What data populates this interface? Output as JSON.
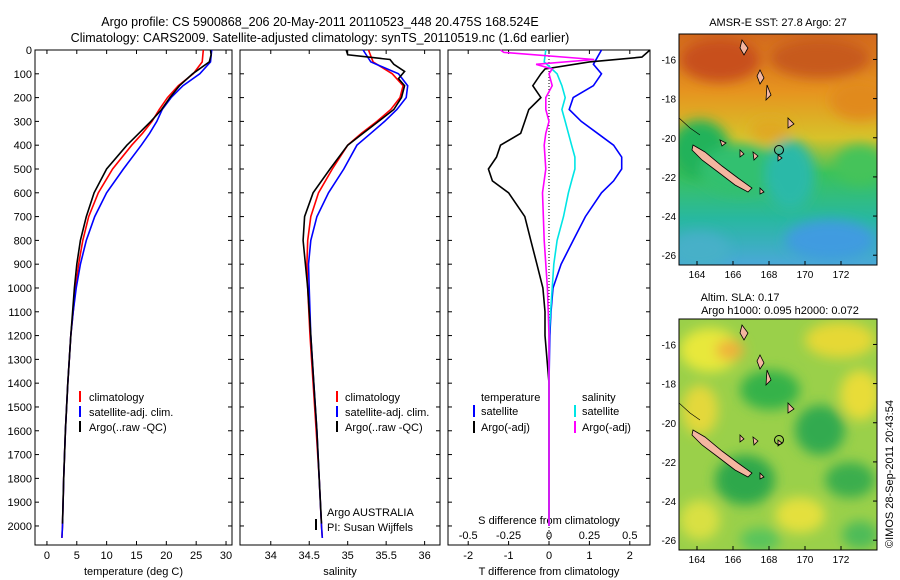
{
  "title": {
    "line1": "Argo profile: CS 5900868_206 20-May-2011 20110523_448 20.475S 168.524E",
    "line2": "Climatology: CARS2009. Satellite-adjusted climatology: synTS_20110519.nc (1.6d earlier)"
  },
  "colors": {
    "climatology": "#ff0000",
    "satellite": "#0000ff",
    "argo": "#000000",
    "salinity_sat": "#00e5e5",
    "salinity_argo": "#ff00ff"
  },
  "chart_data": [
    {
      "id": "temperature",
      "type": "line",
      "xlabel": "temperature (deg C)",
      "ylabel": "",
      "xlim": [
        -2,
        31
      ],
      "ylim": [
        2080,
        0
      ],
      "xticks": [
        "0",
        "5",
        "10",
        "15",
        "20",
        "25",
        "30"
      ],
      "xtick_values": [
        0,
        5,
        10,
        15,
        20,
        25,
        30
      ],
      "yticks": [
        "0",
        "100",
        "200",
        "300",
        "400",
        "500",
        "600",
        "700",
        "800",
        "900",
        "1000",
        "1100",
        "1200",
        "1300",
        "1400",
        "1500",
        "1600",
        "1700",
        "1800",
        "1900",
        "2000"
      ],
      "ytick_values": [
        0,
        100,
        200,
        300,
        400,
        500,
        600,
        700,
        800,
        900,
        1000,
        1100,
        1200,
        1300,
        1400,
        1500,
        1600,
        1700,
        1800,
        1900,
        2000
      ],
      "legend": [
        "climatology",
        "satellite-adj. clim.",
        "Argo(..raw -QC)"
      ],
      "series": [
        {
          "name": "climatology",
          "depth": [
            0,
            50,
            100,
            150,
            200,
            250,
            300,
            350,
            400,
            500,
            600,
            700,
            800,
            900,
            1000,
            1100,
            1200,
            1400,
            1600,
            1800,
            2000,
            2050
          ],
          "values": [
            26.2,
            26.0,
            24.5,
            22.0,
            20.2,
            18.8,
            17.6,
            16.0,
            14.2,
            11.0,
            8.6,
            7.0,
            6.0,
            5.3,
            4.8,
            4.4,
            4.0,
            3.5,
            3.1,
            2.8,
            2.6,
            2.5
          ]
        },
        {
          "name": "satellite-adj. clim.",
          "depth": [
            0,
            50,
            100,
            150,
            200,
            250,
            300,
            350,
            400,
            500,
            600,
            700,
            800,
            900,
            1000,
            1100,
            1200,
            1400,
            1600,
            1800,
            2000,
            2050
          ],
          "values": [
            27.6,
            27.4,
            25.6,
            22.8,
            20.8,
            19.3,
            18.4,
            17.2,
            15.8,
            12.8,
            10.0,
            8.0,
            6.6,
            5.6,
            4.9,
            4.4,
            4.0,
            3.5,
            3.1,
            2.8,
            2.6,
            2.5
          ]
        },
        {
          "name": "Argo(..raw -QC)",
          "depth": [
            0,
            20,
            50,
            100,
            150,
            200,
            250,
            300,
            350,
            400,
            500,
            600,
            700,
            800,
            900,
            1000,
            1100,
            1200,
            1400,
            1600,
            1800,
            1990
          ],
          "values": [
            27.4,
            27.5,
            27.2,
            24.4,
            22.2,
            20.6,
            19.2,
            17.4,
            15.4,
            13.4,
            10.0,
            7.9,
            6.6,
            5.6,
            5.0,
            4.6,
            4.3,
            4.0,
            3.5,
            3.1,
            2.8,
            2.6
          ]
        }
      ]
    },
    {
      "id": "salinity",
      "type": "line",
      "xlabel": "salinity",
      "xlim": [
        33.6,
        36.2
      ],
      "ylim": [
        2080,
        0
      ],
      "xticks": [
        "34",
        "34.5",
        "35",
        "35.5",
        "36"
      ],
      "xtick_values": [
        34,
        34.5,
        35,
        35.5,
        36
      ],
      "legend": [
        "climatology",
        "satellite-adj. clim.",
        "Argo(..raw -QC)"
      ],
      "annotation": {
        "line1": "Argo AUSTRALIA",
        "line2": "PI: Susan Wijffels"
      },
      "series": [
        {
          "name": "climatology",
          "depth": [
            0,
            50,
            100,
            150,
            200,
            250,
            300,
            350,
            400,
            500,
            600,
            700,
            800,
            900,
            1000,
            1200,
            1400,
            1600,
            1800,
            2000,
            2050
          ],
          "values": [
            35.27,
            35.33,
            35.58,
            35.72,
            35.68,
            35.56,
            35.38,
            35.18,
            35.0,
            34.8,
            34.62,
            34.52,
            34.48,
            34.47,
            34.48,
            34.51,
            34.55,
            34.59,
            34.63,
            34.66,
            34.67
          ]
        },
        {
          "name": "satellite-adj. clim.",
          "depth": [
            0,
            50,
            100,
            150,
            200,
            250,
            300,
            350,
            400,
            500,
            600,
            700,
            800,
            900,
            1000,
            1200,
            1400,
            1600,
            1800,
            2000,
            2050
          ],
          "values": [
            35.2,
            35.3,
            35.66,
            35.78,
            35.76,
            35.64,
            35.48,
            35.3,
            35.12,
            34.95,
            34.75,
            34.6,
            34.52,
            34.49,
            34.5,
            34.52,
            34.56,
            34.6,
            34.63,
            34.66,
            34.67
          ]
        },
        {
          "name": "Argo(..raw -QC)",
          "depth": [
            0,
            20,
            40,
            60,
            90,
            120,
            150,
            200,
            250,
            300,
            350,
            400,
            500,
            600,
            700,
            800,
            900,
            1000,
            1200,
            1400,
            1600,
            1800,
            1990
          ],
          "values": [
            34.98,
            35.0,
            35.55,
            35.6,
            35.74,
            35.66,
            35.74,
            35.7,
            35.6,
            35.4,
            35.2,
            35.0,
            34.77,
            34.55,
            34.44,
            34.42,
            34.45,
            34.48,
            34.52,
            34.56,
            34.6,
            34.63,
            34.66
          ]
        }
      ]
    },
    {
      "id": "difference",
      "type": "line",
      "xlabel": "T difference from climatology",
      "top_label": "S difference from climatology",
      "xlim": [
        -2.5,
        2.5
      ],
      "ylim": [
        2080,
        0
      ],
      "xticks": [
        "-2",
        "-1",
        "0",
        "1",
        "2"
      ],
      "xtick_values": [
        -2,
        -1,
        0,
        1,
        2
      ],
      "s_ticks": [
        "-0.5",
        "-0.25",
        "0",
        "0.25",
        "0.5"
      ],
      "s_tick_values": [
        -0.5,
        -0.25,
        0,
        0.25,
        0.5
      ],
      "legend_temperature": {
        "title": "temperature",
        "items": [
          "satellite",
          "Argo(-adj)"
        ]
      },
      "legend_salinity": {
        "title": "salinity",
        "items": [
          "satellite",
          "Argo(-adj)"
        ]
      },
      "series": [
        {
          "name": "temperature satellite",
          "depth": [
            0,
            60,
            100,
            150,
            200,
            250,
            300,
            350,
            400,
            450,
            500,
            550,
            600,
            700,
            800,
            900,
            1000,
            1100,
            1200,
            1400,
            1600,
            1800,
            2000
          ],
          "values": [
            1.3,
            1.1,
            1.3,
            1.1,
            0.6,
            0.5,
            0.8,
            1.2,
            1.6,
            1.8,
            1.8,
            1.6,
            1.3,
            0.9,
            0.6,
            0.3,
            0.1,
            0.05,
            0.02,
            0.0,
            0.0,
            0.0,
            0.0
          ]
        },
        {
          "name": "temperature Argo(-adj)",
          "depth": [
            0,
            30,
            50,
            80,
            100,
            150,
            200,
            250,
            300,
            350,
            400,
            450,
            500,
            550,
            600,
            700,
            800,
            900,
            1000,
            1100,
            1200,
            1300,
            1400,
            1600,
            1800,
            2000
          ],
          "values": [
            2.5,
            2.3,
            1.0,
            -0.1,
            -0.2,
            -0.4,
            -0.2,
            -0.5,
            -0.6,
            -0.7,
            -1.2,
            -1.3,
            -1.5,
            -1.4,
            -1.0,
            -0.6,
            -0.45,
            -0.3,
            -0.15,
            -0.1,
            -0.1,
            -0.05,
            0.0,
            0.0,
            0.0,
            0.0
          ]
        },
        {
          "name": "salinity satellite",
          "depth": [
            0,
            50,
            100,
            150,
            200,
            250,
            300,
            350,
            400,
            450,
            500,
            550,
            600,
            700,
            800,
            900,
            1000,
            1100,
            1200,
            1400,
            1600,
            1800,
            2000
          ],
          "values": [
            -0.02,
            -0.03,
            0.05,
            0.08,
            0.1,
            0.08,
            0.1,
            0.12,
            0.14,
            0.16,
            0.16,
            0.14,
            0.12,
            0.09,
            0.05,
            0.03,
            0.02,
            0.01,
            0.0,
            0.0,
            0.0,
            0.0,
            0.0
          ]
        },
        {
          "name": "salinity Argo(-adj)",
          "depth": [
            0,
            10,
            40,
            60,
            80,
            100,
            150,
            200,
            250,
            300,
            350,
            400,
            500,
            600,
            800,
            1000,
            1200,
            1400,
            1600,
            1800,
            2000
          ],
          "values": [
            -0.3,
            -0.28,
            0.28,
            -0.08,
            0.02,
            0.0,
            0.02,
            -0.02,
            -0.02,
            0.0,
            -0.02,
            -0.03,
            -0.02,
            -0.04,
            -0.03,
            -0.01,
            0.0,
            0.0,
            0.0,
            0.0,
            0.0
          ]
        }
      ]
    },
    {
      "id": "sst_map",
      "type": "heatmap",
      "title": "AMSR-E SST: 27.8 Argo: 27",
      "xticks": [
        "164",
        "166",
        "168",
        "170",
        "172"
      ],
      "xtick_values": [
        164,
        166,
        168,
        170,
        172
      ],
      "yticks": [
        "-16",
        "-18",
        "-20",
        "-22",
        "-24",
        "-26"
      ],
      "ytick_values": [
        -16,
        -18,
        -20,
        -22,
        -24,
        -26
      ],
      "xlim": [
        163,
        174
      ],
      "ylim": [
        -26.5,
        -14.7
      ],
      "argo_position": {
        "lon": 168.524,
        "lat": -20.475
      }
    },
    {
      "id": "sla_map",
      "type": "heatmap",
      "title_line1": "Altim. SLA: 0.17",
      "title_line2": "Argo h1000: 0.095 h2000: 0.072",
      "xticks": [
        "164",
        "166",
        "168",
        "170",
        "172"
      ],
      "xtick_values": [
        164,
        166,
        168,
        170,
        172
      ],
      "yticks": [
        "-16",
        "-18",
        "-20",
        "-22",
        "-24",
        "-26"
      ],
      "ytick_values": [
        -16,
        -18,
        -20,
        -22,
        -24,
        -26
      ],
      "xlim": [
        163,
        174
      ],
      "ylim": [
        -26.5,
        -14.7
      ],
      "argo_position": {
        "lon": 168.524,
        "lat": -20.475
      }
    }
  ],
  "credit": "©IMOS 28-Sep-2011 20:43:54"
}
